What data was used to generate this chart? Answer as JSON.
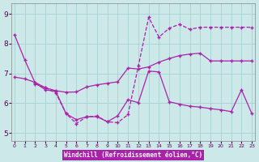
{
  "xlabel": "Windchill (Refroidissement éolien,°C)",
  "background_color": "#cce8e8",
  "grid_color": "#aad4d4",
  "line_color": "#aa22aa",
  "x_ticks": [
    0,
    1,
    2,
    3,
    4,
    5,
    6,
    7,
    8,
    9,
    10,
    11,
    12,
    13,
    14,
    15,
    16,
    17,
    18,
    19,
    20,
    21,
    22,
    23
  ],
  "y_ticks": [
    5,
    6,
    7,
    8,
    9
  ],
  "ylim": [
    4.75,
    9.35
  ],
  "xlim": [
    -0.3,
    23.3
  ],
  "line1_x": [
    0,
    1,
    2,
    3,
    4,
    5,
    6,
    7,
    8,
    9,
    10,
    11,
    12,
    13,
    14,
    15,
    16,
    17,
    18,
    19,
    20,
    21,
    22,
    23
  ],
  "line1_y": [
    8.3,
    7.45,
    6.68,
    6.45,
    6.4,
    5.65,
    5.45,
    5.55,
    5.55,
    5.38,
    5.58,
    6.12,
    6.02,
    7.08,
    7.05,
    6.05,
    5.97,
    5.9,
    5.87,
    5.82,
    5.78,
    5.72,
    6.45,
    5.65
  ],
  "line2_x": [
    0,
    1,
    2,
    3,
    4,
    5,
    6,
    7,
    8,
    9,
    10,
    11,
    12,
    13,
    14,
    15,
    16,
    17,
    18,
    19,
    20,
    21,
    22,
    23
  ],
  "line2_y": [
    6.88,
    6.82,
    6.7,
    6.52,
    6.42,
    6.37,
    6.38,
    6.55,
    6.62,
    6.67,
    6.72,
    7.18,
    7.15,
    7.22,
    7.38,
    7.5,
    7.6,
    7.65,
    7.68,
    7.42,
    7.42,
    7.42,
    7.42,
    7.42
  ],
  "line3_x": [
    2,
    3,
    4,
    5,
    6,
    7,
    8,
    9,
    10,
    11,
    12,
    13,
    14,
    15,
    16,
    17,
    18,
    19,
    20,
    21,
    22,
    23
  ],
  "line3_y": [
    6.65,
    6.52,
    6.35,
    5.65,
    5.32,
    5.55,
    5.57,
    5.38,
    5.35,
    5.62,
    7.25,
    8.88,
    8.22,
    8.52,
    8.65,
    8.48,
    8.55,
    8.55,
    8.55,
    8.55,
    8.55,
    8.55
  ]
}
